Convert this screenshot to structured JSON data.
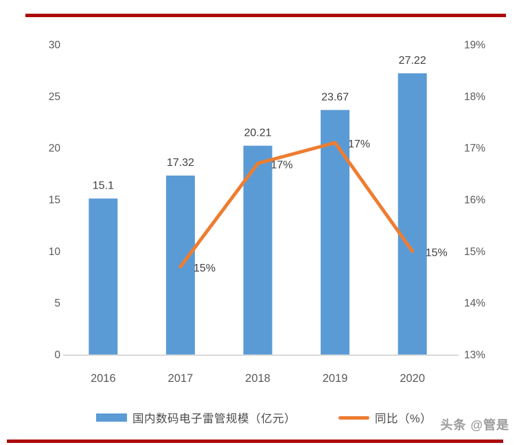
{
  "page": {
    "watermark": "头条 @管是",
    "rule_color": "#AB0A0A"
  },
  "legend": {
    "bar_label": "国内数码电子雷管规模（亿元）",
    "line_label": "同比（%）"
  },
  "chart_data": {
    "type": "combo",
    "title": "",
    "categories": [
      "2016",
      "2017",
      "2018",
      "2019",
      "2020"
    ],
    "series": [
      {
        "name": "国内数码电子雷管规模（亿元）",
        "type": "bar",
        "axis": "left",
        "color": "#5B9BD5",
        "values": [
          15.1,
          17.32,
          20.21,
          23.67,
          27.22
        ],
        "labels": [
          "15.1",
          "17.32",
          "20.21",
          "23.67",
          "27.22"
        ]
      },
      {
        "name": "同比（%）",
        "type": "line",
        "axis": "right",
        "color": "#ED7D31",
        "values": [
          null,
          14.7,
          16.7,
          17.1,
          15.0
        ],
        "labels": [
          null,
          "15%",
          "17%",
          "17%",
          "15%"
        ]
      }
    ],
    "left_axis": {
      "min": 0,
      "max": 30,
      "step": 5,
      "ticks": [
        "30",
        "25",
        "20",
        "15",
        "10",
        "5",
        "0"
      ]
    },
    "right_axis": {
      "min": 13,
      "max": 19,
      "step": 1,
      "ticks": [
        "19%",
        "18%",
        "17%",
        "16%",
        "15%",
        "14%",
        "13%"
      ]
    },
    "grid": false,
    "legend_position": "bottom",
    "text_color_labels": "#3f3f3f",
    "text_color_ticks": "#595959",
    "baseline_color": "#d9d9d9"
  }
}
